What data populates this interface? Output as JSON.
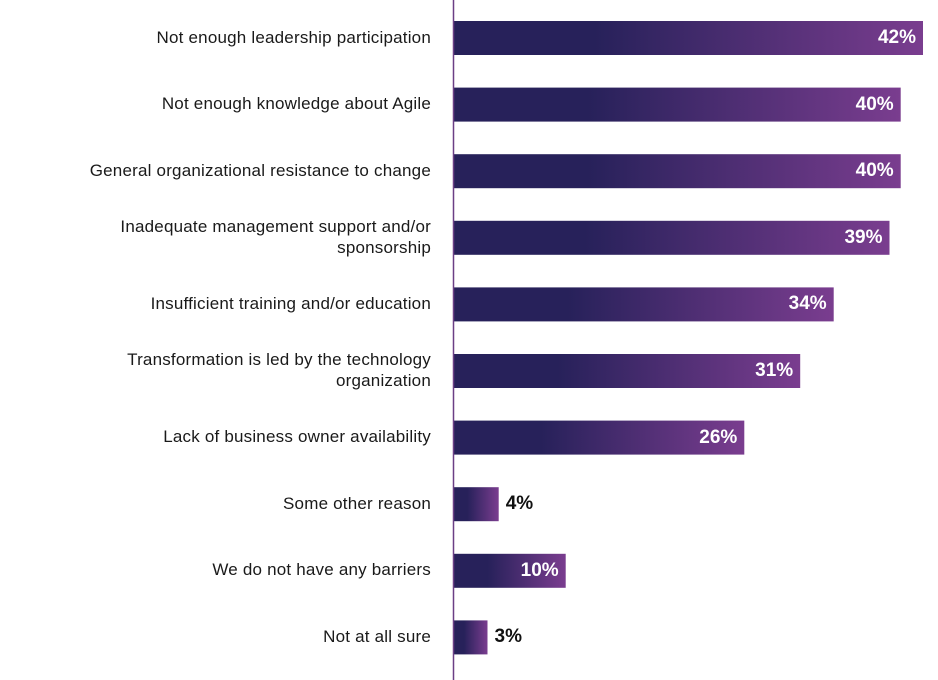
{
  "colors": {
    "bar_start": "#27215a",
    "bar_end": "#7a3d8f",
    "axis_line": "#6b3f85",
    "label_text": "#1a1a1a",
    "value_inside": "#ffffff",
    "value_outside": "#111111"
  },
  "chart_data": {
    "type": "bar",
    "orientation": "horizontal",
    "title": "",
    "xlabel": "",
    "ylabel": "",
    "value_suffix": "%",
    "xlim": [
      0,
      42
    ],
    "grid": false,
    "legend": "none",
    "categories": [
      [
        "Not enough leadership participation"
      ],
      [
        "Not enough knowledge about Agile"
      ],
      [
        "General organizational resistance to change"
      ],
      [
        "Inadequate management support and/or",
        "sponsorship"
      ],
      [
        "Insufficient training and/or education"
      ],
      [
        "Transformation is led by the technology",
        "organization"
      ],
      [
        "Lack of business owner availability"
      ],
      [
        "Some other reason"
      ],
      [
        "We do not have any barriers"
      ],
      [
        "Not at all sure"
      ]
    ],
    "values": [
      42,
      40,
      40,
      39,
      34,
      31,
      26,
      4,
      10,
      3
    ]
  }
}
